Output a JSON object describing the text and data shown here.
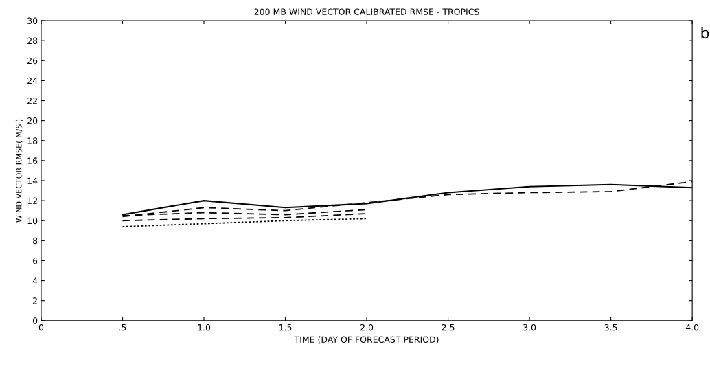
{
  "chart_data": {
    "type": "line",
    "title": "200 MB WIND VECTOR CALIBRATED RMSE - TROPICS",
    "xlabel": "TIME (DAY OF FORECAST PERIOD)",
    "ylabel": "WIND VECTOR RMSE( M/S )",
    "xlim": [
      0,
      4
    ],
    "xticks": [
      0,
      {
        "value": 0.5,
        "label": ".5"
      },
      {
        "value": 1,
        "label": "1.0"
      },
      {
        "value": 1.5,
        "label": "1.5"
      },
      {
        "value": 2,
        "label": "2.0"
      },
      {
        "value": 2.5,
        "label": "2.5"
      },
      {
        "value": 3,
        "label": "3.0"
      },
      {
        "value": 3.5,
        "label": "3.5"
      },
      {
        "value": 4,
        "label": "4.0"
      }
    ],
    "ylim": [
      0,
      30
    ],
    "yticks": [
      0,
      2,
      4,
      6,
      8,
      10,
      12,
      14,
      16,
      18,
      20,
      22,
      24,
      26,
      28,
      30
    ],
    "grid": false,
    "legend": false,
    "series": [
      {
        "color": "#000000",
        "line_style": "solid",
        "x": [
          0.5,
          1.0,
          1.5,
          2.0,
          2.5,
          3.0,
          3.5,
          4.0
        ],
        "values": [
          10.6,
          12.0,
          11.3,
          11.7,
          12.8,
          13.4,
          13.6,
          13.3
        ]
      },
      {
        "color": "#000000",
        "line_style": "dashed",
        "x": [
          0.5,
          1.0,
          1.5,
          2.0,
          2.5,
          3.0,
          3.5,
          4.0
        ],
        "values": [
          10.4,
          11.3,
          11.0,
          11.8,
          12.6,
          12.8,
          12.9,
          13.9
        ]
      },
      {
        "color": "#000000",
        "line_style": "dashed",
        "x": [
          0.5,
          1.0,
          1.5,
          2.0
        ],
        "values": [
          10.5,
          10.8,
          10.6,
          11.1
        ]
      },
      {
        "color": "#000000",
        "line_style": "dashed",
        "x": [
          0.5,
          1.0,
          1.5,
          2.0
        ],
        "values": [
          10.0,
          10.2,
          10.3,
          10.7
        ]
      },
      {
        "color": "#000000",
        "line_style": "dotted",
        "x": [
          0.5,
          1.0,
          1.5,
          2.0
        ],
        "values": [
          9.4,
          9.7,
          10.0,
          10.2
        ]
      }
    ],
    "annotations": [
      "b"
    ]
  }
}
